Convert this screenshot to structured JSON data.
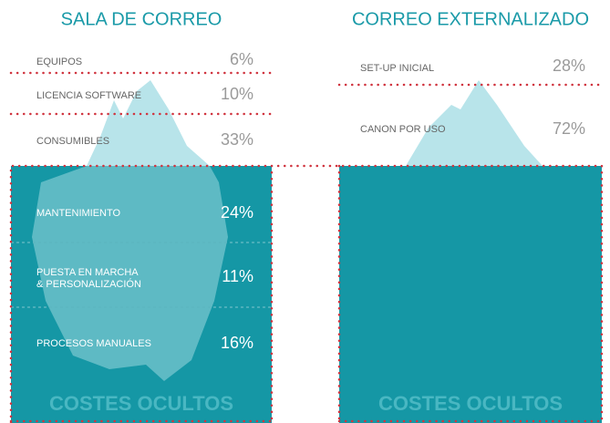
{
  "left": {
    "title": "SALA DE CORREO",
    "above": [
      {
        "label": "EQUIPOS",
        "value": "6%"
      },
      {
        "label": "LICENCIA SOFTWARE",
        "value": "10%"
      },
      {
        "label": "CONSUMIBLES",
        "value": "33%"
      }
    ],
    "below": [
      {
        "label": [
          "MANTENIMIENTO"
        ],
        "value": "24%"
      },
      {
        "label": [
          "PUESTA EN MARCHA",
          "& PERSONALIZACIÓN"
        ],
        "value": "11%"
      },
      {
        "label": [
          "PROCESOS MANUALES"
        ],
        "value": "16%"
      }
    ],
    "footer": "COSTES OCULTOS"
  },
  "right": {
    "title": "CORREO EXTERNALIZADO",
    "above": [
      {
        "label": "SET-UP INICIAL",
        "value": "28%"
      },
      {
        "label": "CANON POR USO",
        "value": "72%"
      }
    ],
    "footer": "COSTES OCULTOS"
  }
}
